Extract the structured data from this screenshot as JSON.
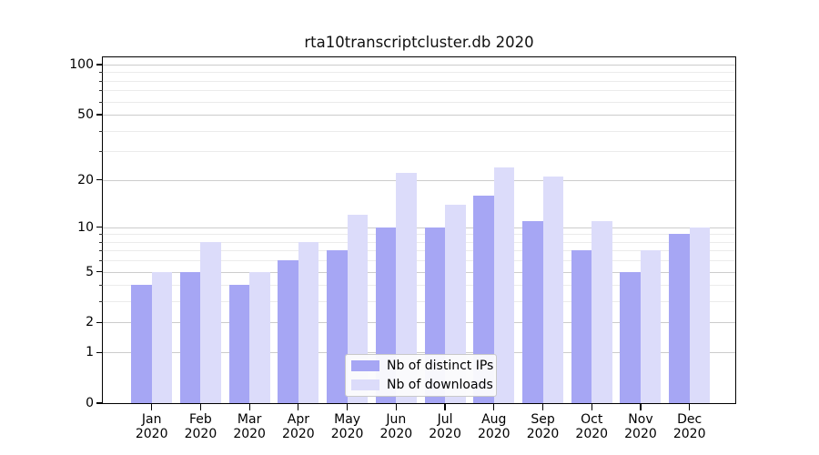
{
  "chart_data": {
    "type": "bar",
    "title": "rta10transcriptcluster.db 2020",
    "categories": [
      "Jan",
      "Feb",
      "Mar",
      "Apr",
      "May",
      "Jun",
      "Jul",
      "Aug",
      "Sep",
      "Oct",
      "Nov",
      "Dec"
    ],
    "category_year": "2020",
    "series": [
      {
        "name": "Nb of distinct IPs",
        "color": "#a6a6f4",
        "values": [
          4,
          5,
          4,
          6,
          7,
          10,
          10,
          16,
          11,
          7,
          5,
          9
        ]
      },
      {
        "name": "Nb of downloads",
        "color": "#dcdcfa",
        "values": [
          5,
          8,
          5,
          8,
          12,
          22,
          14,
          24,
          21,
          11,
          7,
          10
        ]
      }
    ],
    "yaxis": {
      "scale": "log1p",
      "ticks": [
        0,
        1,
        2,
        5,
        10,
        20,
        50,
        100
      ],
      "minor_ticks": [
        3,
        4,
        6,
        7,
        8,
        9,
        30,
        40,
        60,
        70,
        80,
        90
      ],
      "range": [
        0,
        111
      ]
    },
    "xlabel": "",
    "ylabel": "",
    "grid": {
      "major_color": "#cccccc",
      "minor_color": "#ebebeb"
    },
    "legend": {
      "position": "lower center"
    }
  }
}
